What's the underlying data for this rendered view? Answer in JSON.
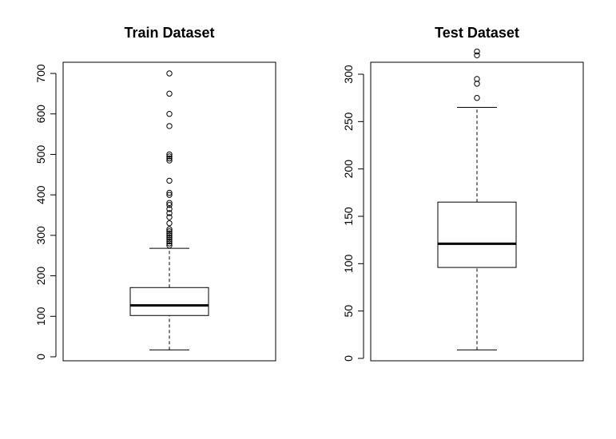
{
  "chart_data": [
    {
      "type": "boxplot",
      "title": "Train Dataset",
      "xlabel": "",
      "ylabel": "",
      "ylim": [
        0,
        700
      ],
      "yticks": [
        0,
        100,
        200,
        300,
        400,
        500,
        600,
        700
      ],
      "grid": false,
      "box": {
        "whisker_low": 17,
        "q1": 102,
        "median": 127,
        "q3": 171,
        "whisker_high": 268
      },
      "outliers": [
        275,
        280,
        285,
        290,
        295,
        300,
        305,
        310,
        315,
        330,
        345,
        355,
        365,
        375,
        380,
        400,
        405,
        435,
        485,
        490,
        495,
        500,
        570,
        600,
        650,
        700
      ]
    },
    {
      "type": "boxplot",
      "title": "Test Dataset",
      "xlabel": "",
      "ylabel": "",
      "ylim": [
        0,
        325
      ],
      "yticks": [
        0,
        50,
        100,
        150,
        200,
        250,
        300
      ],
      "grid": false,
      "box": {
        "whisker_low": 9,
        "q1": 96,
        "median": 121,
        "q3": 165,
        "whisker_high": 265
      },
      "outliers": [
        275,
        290,
        295,
        320,
        324
      ]
    }
  ]
}
